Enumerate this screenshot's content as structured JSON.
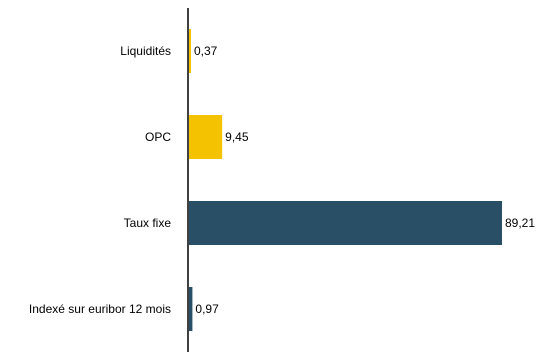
{
  "chart_data": {
    "type": "bar",
    "orientation": "horizontal",
    "title": "",
    "xlabel": "",
    "ylabel": "",
    "categories": [
      "Liquidités",
      "OPC",
      "Taux fixe",
      "Indexé sur euribor 12 mois"
    ],
    "values": [
      0.37,
      9.45,
      89.21,
      0.97
    ],
    "value_labels": [
      "0,37",
      "9,45",
      "89,21",
      "0,97"
    ],
    "colors": [
      "#f5c200",
      "#f5c200",
      "#284f66",
      "#284f66"
    ],
    "xlim": [
      0,
      89.21
    ],
    "grid": false,
    "legend": "none"
  }
}
